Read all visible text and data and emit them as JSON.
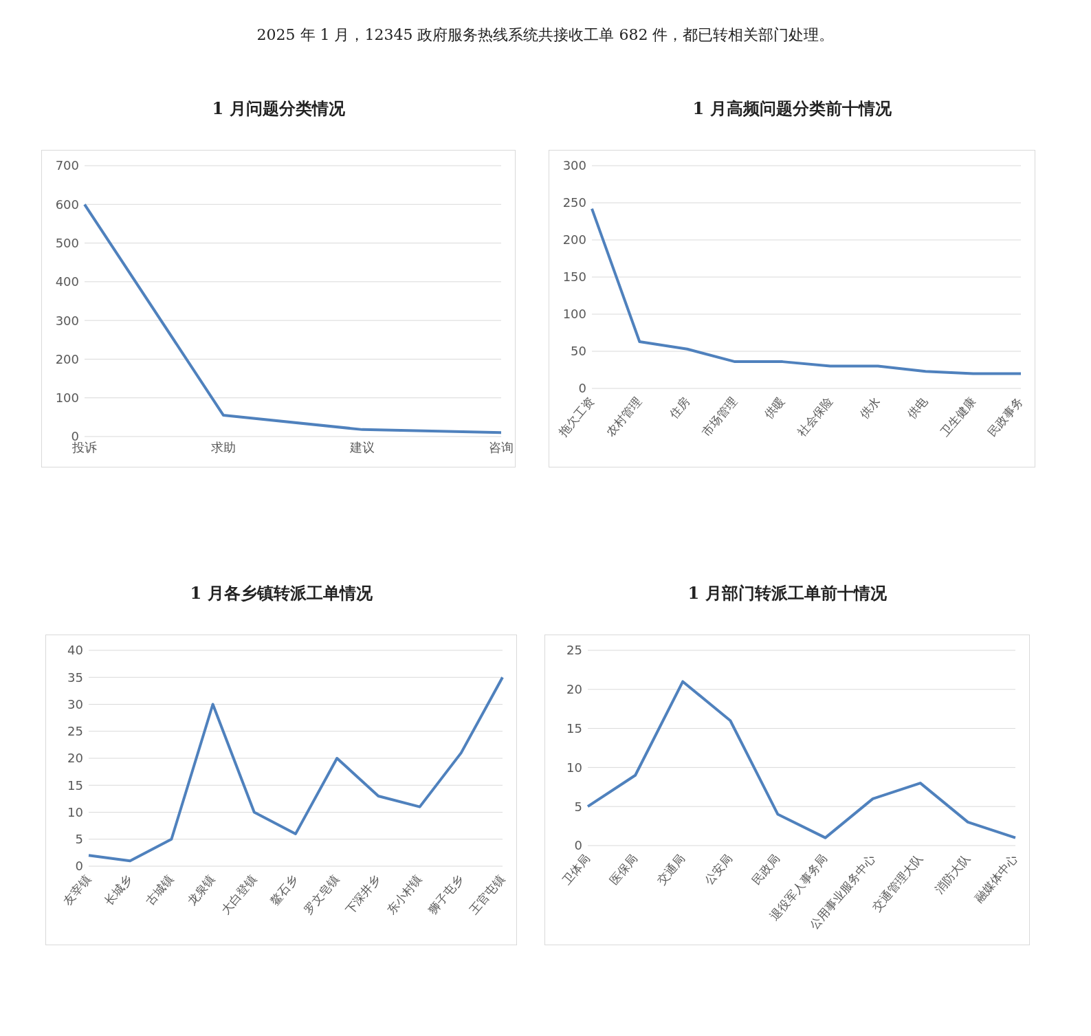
{
  "chart_data": [
    {
      "type": "other",
      "annotations": [
        "2025 年 1 月，12345 政府服务热线系统共接收工单 682 件，都已转相关部门处理。"
      ]
    },
    {
      "type": "line",
      "title": "1 月问题分类情况",
      "categories": [
        "投诉",
        "求助",
        "建议",
        "咨询"
      ],
      "series": [
        {
          "color": "#4f81bd",
          "values": [
            600,
            55,
            18,
            10
          ]
        }
      ],
      "ylim": [
        0,
        700
      ],
      "yticks": [
        0,
        100,
        200,
        300,
        400,
        500,
        600,
        700
      ],
      "grid": "y",
      "marker": "none",
      "line_style": "solid"
    },
    {
      "type": "line",
      "title": "1 月高频问题分类前十情况",
      "categories": [
        "拖欠工资",
        "农村管理",
        "住房",
        "市场管理",
        "供暖",
        "社会保险",
        "供水",
        "供电",
        "卫生健康",
        "民政事务"
      ],
      "series": [
        {
          "color": "#4f81bd",
          "values": [
            242,
            63,
            53,
            36,
            36,
            30,
            30,
            23,
            20,
            20
          ]
        }
      ],
      "ylim": [
        0,
        300
      ],
      "yticks": [
        0,
        50,
        100,
        150,
        200,
        250,
        300
      ],
      "grid": "y",
      "marker": "none",
      "line_style": "solid"
    },
    {
      "type": "line",
      "title": "1 月各乡镇转派工单情况",
      "categories": [
        "友宰镇",
        "长城乡",
        "古城镇",
        "龙泉镇",
        "大白登镇",
        "鳌石乡",
        "罗文皂镇",
        "下深井乡",
        "东小村镇",
        "狮子屯乡",
        "王官屯镇"
      ],
      "series": [
        {
          "color": "#4f81bd",
          "values": [
            2,
            1,
            5,
            30,
            10,
            6,
            20,
            13,
            11,
            21,
            35
          ]
        }
      ],
      "ylim": [
        0,
        40
      ],
      "yticks": [
        0,
        5,
        10,
        15,
        20,
        25,
        30,
        35,
        40
      ],
      "grid": "y",
      "marker": "none",
      "line_style": "solid"
    },
    {
      "type": "line",
      "title": "1 月部门转派工单前十情况",
      "categories": [
        "卫体局",
        "医保局",
        "交通局",
        "公安局",
        "民政局",
        "退役军人事务局",
        "公用事业服务中心",
        "交通管理大队",
        "消防大队",
        "融媒体中心"
      ],
      "series": [
        {
          "color": "#4f81bd",
          "values": [
            5,
            9,
            21,
            16,
            4,
            1,
            6,
            8,
            3,
            1
          ]
        }
      ],
      "ylim": [
        0,
        25
      ],
      "yticks": [
        0,
        5,
        10,
        15,
        20,
        25
      ],
      "grid": "y",
      "marker": "none",
      "line_style": "solid"
    }
  ]
}
